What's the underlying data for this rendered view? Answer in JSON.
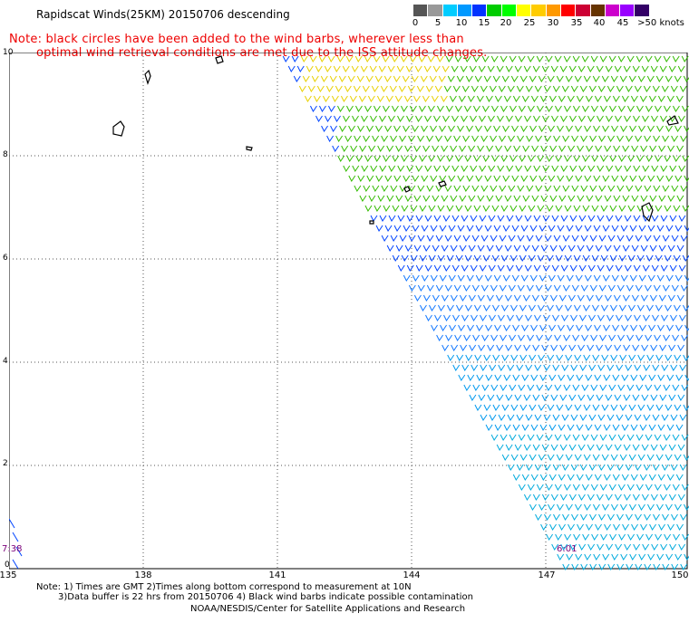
{
  "header": {
    "title": "Rapidscat Winds(25KM) 20150706 descending",
    "note_line1": "Note: black circles have been added to the wind barbs, wherever less than",
    "note_line2": "optimal wind retrieval conditions are met due to the ISS attitude changes."
  },
  "colorbar": {
    "labels": [
      "0",
      "5",
      "10",
      "15",
      "20",
      "25",
      "30",
      "35",
      "40",
      "45",
      ">50 knots"
    ],
    "colors": [
      "#555555",
      "#999999",
      "#00ccff",
      "#0099ff",
      "#0033ff",
      "#00cc00",
      "#00ff00",
      "#ffff00",
      "#ffcc00",
      "#ff9900",
      "#ff0000",
      "#cc0033",
      "#663300",
      "#cc00cc",
      "#9900ff",
      "#330066"
    ]
  },
  "axes": {
    "x_ticks": [
      "138",
      "141",
      "144",
      "147",
      "150"
    ],
    "x_start_label": "135",
    "y_ticks": [
      "2",
      "4",
      "6",
      "8",
      "10"
    ],
    "y_bottom_label": "0"
  },
  "time_labels": {
    "left": "7:38",
    "right": "6:01"
  },
  "footer": {
    "line1": "Note: 1) Times are GMT 2)Times along bottom correspond to measurement at 10N",
    "line2": "3)Data buffer is 22 hrs from 20150706 4) Black wind barbs indicate possible contamination",
    "credit": "NOAA/NESDIS/Center for Satellite Applications and Research"
  }
}
